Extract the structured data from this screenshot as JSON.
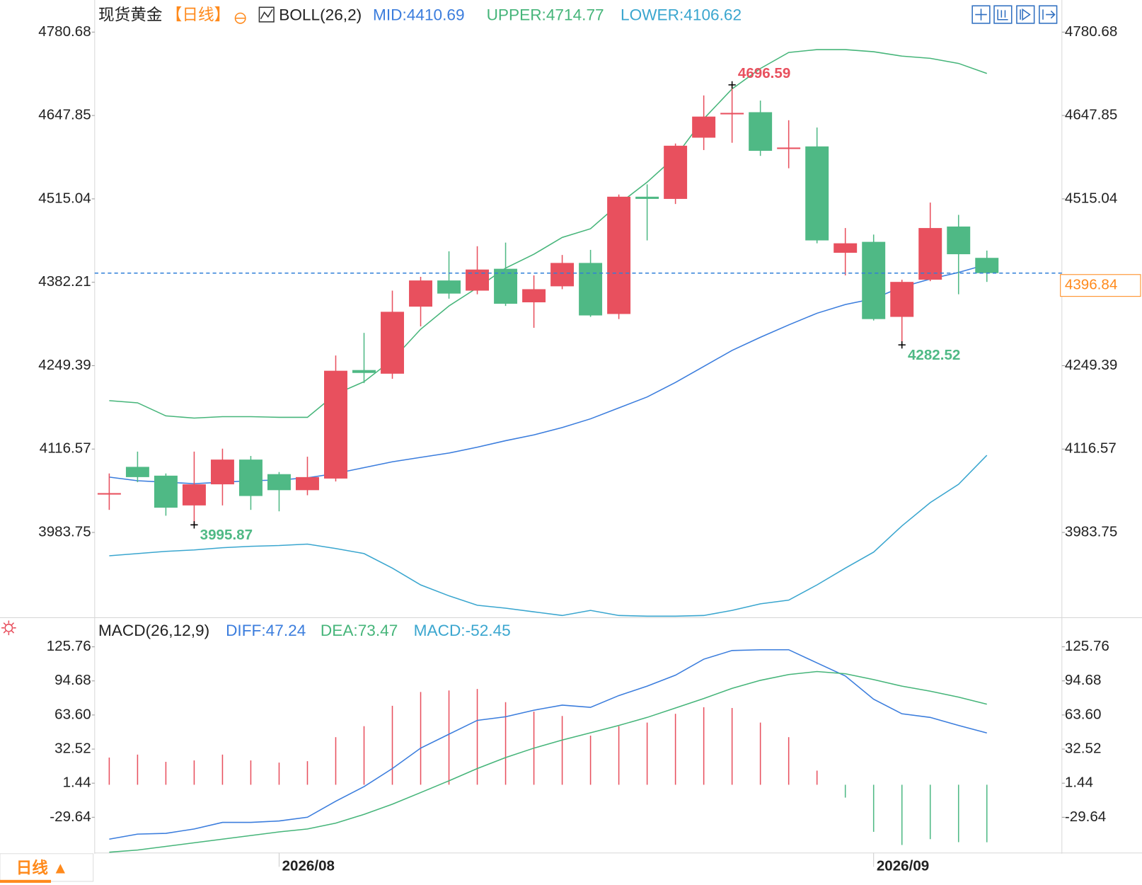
{
  "chart_data": {
    "type": "candlestick",
    "title": "现货黄金",
    "period": "【日线】",
    "indicator": "BOLL(26,2)",
    "period_button": "日线 ▲",
    "categories": [
      null,
      null,
      null,
      null,
      null,
      null,
      "2026/08",
      null,
      null,
      null,
      null,
      null,
      null,
      null,
      null,
      null,
      null,
      null,
      null,
      null,
      null,
      null,
      null,
      null,
      null,
      null,
      null,
      "2026/09",
      null,
      null,
      null,
      null
    ],
    "open": [
      4046.4,
      4088.2,
      4074.2,
      4026.8,
      4060.4,
      4099.8,
      4076.6,
      4051.1,
      4069.6,
      4242.4,
      4236.6,
      4343.4,
      4385.1,
      4368.9,
      4403.7,
      4350.3,
      4375.8,
      4413.0,
      4331.7,
      4518.5,
      4515.0,
      4612.5,
      4651.0,
      4653.1,
      4596.2,
      4598.6,
      4429.2,
      4446.6,
      4327.1,
      4386.3,
      4471.0,
      4421.1
    ],
    "high": [
      4077.7,
      4112.5,
      4077.7,
      4112.5,
      4117.2,
      4105.6,
      4080.0,
      4104.4,
      4265.6,
      4301.6,
      4368.9,
      4390.9,
      4431.5,
      4439.6,
      4445.4,
      4393.2,
      4425.7,
      4433.8,
      4522.0,
      4538.2,
      4603.2,
      4679.8,
      4696.59,
      4671.6,
      4640.3,
      4628.7,
      4468.6,
      4458.2,
      4386.3,
      4509.2,
      4489.5,
      4432.7
    ],
    "low": [
      4019.7,
      4063.8,
      4010.4,
      3995.87,
      4026.8,
      4019.7,
      4017.4,
      4043.0,
      4065.0,
      4221.6,
      4228.5,
      4312.0,
      4356.1,
      4363.1,
      4344.5,
      4309.7,
      4371.2,
      4327.1,
      4323.6,
      4448.9,
      4506.9,
      4592.8,
      4604.4,
      4583.5,
      4563.8,
      4444.3,
      4393.2,
      4321.3,
      4282.52,
      4384.0,
      4363.1,
      4382.8
    ],
    "close": [
      4046.4,
      4071.9,
      4023.2,
      4060.4,
      4099.8,
      4041.8,
      4051.1,
      4071.9,
      4241.3,
      4237.8,
      4335.2,
      4385.1,
      4364.2,
      4402.5,
      4348.0,
      4371.2,
      4413.0,
      4329.4,
      4518.5,
      4515.0,
      4599.7,
      4646.1,
      4652.0,
      4591.6,
      4596.8,
      4448.9,
      4444.3,
      4323.6,
      4382.8,
      4468.6,
      4426.9,
      4396.84
    ],
    "colors": {
      "up": "#e8505e",
      "down": "#4fb985",
      "last": "#ff8a1c",
      "last_line": "#2f7fd8"
    },
    "ylim": [
      3848,
      4826
    ],
    "yticks": [
      4780.68,
      4647.85,
      4515.04,
      4382.21,
      4249.39,
      4116.57,
      3983.75
    ],
    "bands": [
      {
        "name": "MID:4410.69",
        "color": "#3b7ddd",
        "values": [
          4071.9,
          4066.1,
          4063.8,
          4061.5,
          4063.8,
          4066.1,
          4067.3,
          4070.8,
          4077.7,
          4087.0,
          4096.3,
          4103.3,
          4110.2,
          4119.5,
          4129.9,
          4139.2,
          4150.8,
          4164.7,
          4182.1,
          4199.5,
          4222.7,
          4248.2,
          4273.7,
          4294.6,
          4314.3,
          4332.9,
          4346.8,
          4356.1,
          4374.7,
          4387.4,
          4397.9,
          4410.69
        ]
      },
      {
        "name": "UPPER:4714.77",
        "color": "#46b57a",
        "values": [
          4193.7,
          4190.2,
          4169.4,
          4165.9,
          4168.2,
          4168.2,
          4167.1,
          4167.1,
          4204.2,
          4223.9,
          4258.7,
          4307.4,
          4344.5,
          4373.5,
          4404.8,
          4426.9,
          4453.6,
          4467.5,
          4506.9,
          4541.7,
          4582.3,
          4642.6,
          4690.2,
          4722.7,
          4748.2,
          4752.8,
          4752.8,
          4749.4,
          4742.4,
          4738.9,
          4730.8,
          4714.77
        ]
      },
      {
        "name": "LOWER:4106.62",
        "color": "#3aa6cf",
        "values": [
          3946.6,
          3950.1,
          3953.6,
          3955.9,
          3959.4,
          3961.7,
          3962.9,
          3965.2,
          3958.2,
          3950.1,
          3926.9,
          3900.2,
          3882.8,
          3867.8,
          3863.1,
          3857.3,
          3851.5,
          3859.6,
          3851.5,
          3850.4,
          3850.4,
          3851.5,
          3859.6,
          3870.1,
          3875.9,
          3900.2,
          3926.9,
          3952.4,
          3994.2,
          4031.3,
          4060.4,
          4106.62
        ]
      }
    ],
    "macd": {
      "title": "MACD(26,12,9)",
      "ylim": [
        -61.5,
        151
      ],
      "yticks": [
        125.76,
        94.68,
        {
          "value": 63.6,
          "label": "63.60"
        },
        32.52,
        1.44,
        -29.64
      ],
      "series": [
        {
          "name": "DIFF:47.24",
          "color": "#3b7ddd",
          "values": [
            -49.6,
            -45.0,
            -44.3,
            -40.3,
            -34.3,
            -34.3,
            -33.0,
            -29.6,
            -15.0,
            -1.7,
            14.8,
            33.4,
            46.1,
            58.7,
            62.0,
            68.0,
            72.6,
            70.6,
            81.3,
            89.9,
            99.9,
            114.5,
            122.4,
            123.1,
            123.1,
            111.1,
            99.2,
            78.0,
            64.7,
            61.4,
            54.1,
            47.24
          ]
        },
        {
          "name": "DEA:73.47",
          "color": "#46b57a",
          "values": [
            -61.5,
            -59.5,
            -56.2,
            -52.9,
            -49.6,
            -46.3,
            -43.0,
            -40.3,
            -35.0,
            -27.0,
            -17.7,
            -7.1,
            3.6,
            14.8,
            24.8,
            33.4,
            40.8,
            47.4,
            54.1,
            61.4,
            70.0,
            78.6,
            87.9,
            95.2,
            100.5,
            103.2,
            101.2,
            95.9,
            89.9,
            85.3,
            79.9,
            73.47
          ]
        }
      ],
      "histogram": {
        "name": "MACD:-52.45",
        "color": "#3aa6cf",
        "up_color": "#e8505e",
        "down_color": "#4fb985",
        "values": [
          24.8,
          27.5,
          20.9,
          22.2,
          27.5,
          22.2,
          20.2,
          21.5,
          43.4,
          53.4,
          72.0,
          84.6,
          86.0,
          87.3,
          75.3,
          66.7,
          62.7,
          44.8,
          53.4,
          56.7,
          64.7,
          70.7,
          70.0,
          56.7,
          43.4,
          12.9,
          -11.7,
          -42.9,
          -54.9,
          -49.6,
          -52.3,
          -52.45
        ]
      }
    }
  }
}
